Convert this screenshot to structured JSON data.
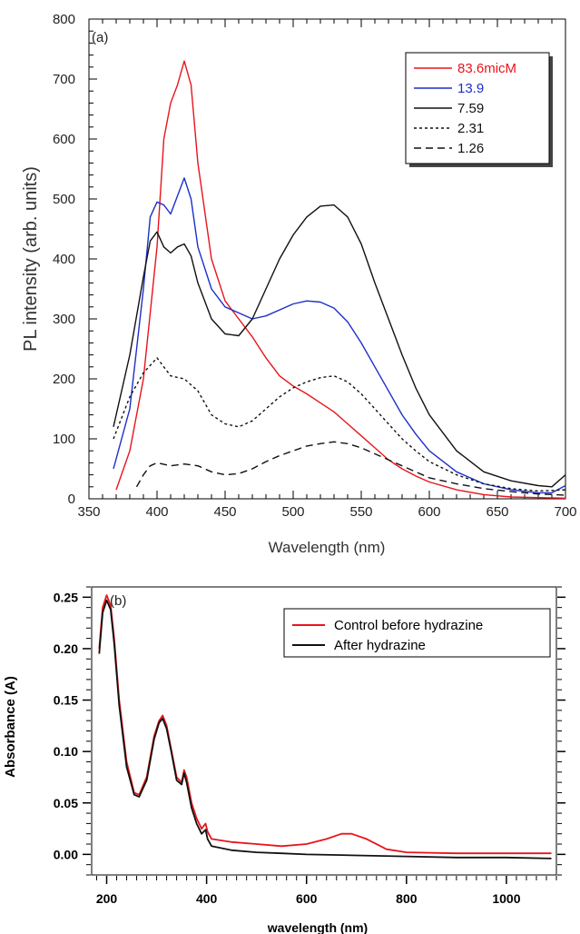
{
  "chart_data": [
    {
      "type": "line",
      "panel_label": "(a)",
      "xlabel": "Wavelength (nm)",
      "ylabel": "PL intensity (arb. units)",
      "xlim": [
        350,
        700
      ],
      "ylim": [
        0,
        800
      ],
      "x_ticks": [
        "350",
        "400",
        "450",
        "500",
        "550",
        "600",
        "650",
        "700"
      ],
      "y_ticks": [
        "0",
        "100",
        "200",
        "300",
        "400",
        "500",
        "600",
        "700",
        "800"
      ],
      "legend_position": "top-right",
      "series": [
        {
          "name": "83.6micM",
          "color": "#e8141b",
          "dash": "solid",
          "points": [
            [
              370,
              15
            ],
            [
              380,
              80
            ],
            [
              390,
              200
            ],
            [
              400,
              420
            ],
            [
              405,
              600
            ],
            [
              410,
              660
            ],
            [
              415,
              690
            ],
            [
              420,
              730
            ],
            [
              425,
              690
            ],
            [
              430,
              560
            ],
            [
              440,
              400
            ],
            [
              450,
              330
            ],
            [
              460,
              300
            ],
            [
              470,
              270
            ],
            [
              480,
              235
            ],
            [
              490,
              205
            ],
            [
              500,
              188
            ],
            [
              510,
              175
            ],
            [
              520,
              160
            ],
            [
              530,
              145
            ],
            [
              540,
              125
            ],
            [
              550,
              105
            ],
            [
              560,
              85
            ],
            [
              570,
              65
            ],
            [
              580,
              50
            ],
            [
              590,
              38
            ],
            [
              600,
              28
            ],
            [
              620,
              15
            ],
            [
              640,
              7
            ],
            [
              660,
              3
            ],
            [
              680,
              2
            ],
            [
              700,
              1
            ]
          ]
        },
        {
          "name": "13.9",
          "color": "#1c2fc8",
          "dash": "solid",
          "points": [
            [
              368,
              50
            ],
            [
              380,
              150
            ],
            [
              390,
              350
            ],
            [
              395,
              470
            ],
            [
              400,
              495
            ],
            [
              405,
              490
            ],
            [
              410,
              475
            ],
            [
              415,
              505
            ],
            [
              420,
              535
            ],
            [
              425,
              500
            ],
            [
              430,
              420
            ],
            [
              440,
              350
            ],
            [
              450,
              320
            ],
            [
              460,
              310
            ],
            [
              470,
              300
            ],
            [
              480,
              305
            ],
            [
              490,
              315
            ],
            [
              500,
              325
            ],
            [
              510,
              330
            ],
            [
              520,
              328
            ],
            [
              530,
              318
            ],
            [
              540,
              295
            ],
            [
              550,
              260
            ],
            [
              560,
              220
            ],
            [
              570,
              180
            ],
            [
              580,
              140
            ],
            [
              590,
              108
            ],
            [
              600,
              80
            ],
            [
              620,
              45
            ],
            [
              640,
              25
            ],
            [
              660,
              15
            ],
            [
              680,
              10
            ],
            [
              690,
              10
            ],
            [
              700,
              22
            ]
          ]
        },
        {
          "name": "7.59",
          "color": "#111111",
          "dash": "solid",
          "points": [
            [
              368,
              120
            ],
            [
              380,
              240
            ],
            [
              390,
              370
            ],
            [
              395,
              430
            ],
            [
              400,
              445
            ],
            [
              405,
              420
            ],
            [
              410,
              410
            ],
            [
              415,
              420
            ],
            [
              420,
              425
            ],
            [
              425,
              405
            ],
            [
              430,
              360
            ],
            [
              440,
              300
            ],
            [
              450,
              275
            ],
            [
              460,
              272
            ],
            [
              470,
              300
            ],
            [
              480,
              350
            ],
            [
              490,
              400
            ],
            [
              500,
              440
            ],
            [
              510,
              470
            ],
            [
              520,
              488
            ],
            [
              530,
              490
            ],
            [
              540,
              470
            ],
            [
              550,
              425
            ],
            [
              560,
              360
            ],
            [
              570,
              300
            ],
            [
              580,
              240
            ],
            [
              590,
              185
            ],
            [
              600,
              140
            ],
            [
              620,
              80
            ],
            [
              640,
              45
            ],
            [
              660,
              30
            ],
            [
              680,
              22
            ],
            [
              690,
              20
            ],
            [
              700,
              40
            ]
          ]
        },
        {
          "name": "2.31",
          "color": "#111111",
          "dash": "dotted",
          "points": [
            [
              368,
              100
            ],
            [
              380,
              170
            ],
            [
              390,
              210
            ],
            [
              400,
              235
            ],
            [
              410,
              205
            ],
            [
              420,
              200
            ],
            [
              430,
              180
            ],
            [
              440,
              140
            ],
            [
              450,
              125
            ],
            [
              460,
              120
            ],
            [
              470,
              130
            ],
            [
              480,
              150
            ],
            [
              490,
              170
            ],
            [
              500,
              185
            ],
            [
              510,
              195
            ],
            [
              520,
              202
            ],
            [
              530,
              205
            ],
            [
              540,
              195
            ],
            [
              550,
              175
            ],
            [
              560,
              150
            ],
            [
              570,
              125
            ],
            [
              580,
              100
            ],
            [
              590,
              80
            ],
            [
              600,
              62
            ],
            [
              620,
              40
            ],
            [
              640,
              25
            ],
            [
              660,
              17
            ],
            [
              680,
              13
            ],
            [
              700,
              15
            ]
          ]
        },
        {
          "name": "1.26",
          "color": "#111111",
          "dash": "dashed",
          "points": [
            [
              385,
              20
            ],
            [
              390,
              40
            ],
            [
              395,
              55
            ],
            [
              400,
              60
            ],
            [
              410,
              55
            ],
            [
              420,
              58
            ],
            [
              430,
              55
            ],
            [
              440,
              45
            ],
            [
              450,
              40
            ],
            [
              460,
              42
            ],
            [
              470,
              50
            ],
            [
              480,
              62
            ],
            [
              490,
              72
            ],
            [
              500,
              80
            ],
            [
              510,
              88
            ],
            [
              520,
              92
            ],
            [
              530,
              95
            ],
            [
              540,
              92
            ],
            [
              550,
              85
            ],
            [
              560,
              75
            ],
            [
              570,
              65
            ],
            [
              580,
              55
            ],
            [
              590,
              45
            ],
            [
              600,
              35
            ],
            [
              620,
              25
            ],
            [
              640,
              17
            ],
            [
              660,
              12
            ],
            [
              680,
              8
            ],
            [
              700,
              6
            ]
          ]
        }
      ]
    },
    {
      "type": "line",
      "panel_label": "(b)",
      "xlabel": "wavelength (nm)",
      "ylabel": "Absorbance (A)",
      "xlim": [
        170,
        1100
      ],
      "ylim": [
        -0.02,
        0.26
      ],
      "x_ticks": [
        "200",
        "400",
        "600",
        "800",
        "1000"
      ],
      "y_ticks": [
        "0.00",
        "0.05",
        "0.10",
        "0.15",
        "0.20",
        "0.25"
      ],
      "legend_position": "top-right",
      "series": [
        {
          "name": "Control before hydrazine",
          "color": "#e8141b",
          "points": [
            [
              185,
              0.2
            ],
            [
              192,
              0.24
            ],
            [
              200,
              0.252
            ],
            [
              208,
              0.242
            ],
            [
              215,
              0.21
            ],
            [
              225,
              0.15
            ],
            [
              240,
              0.09
            ],
            [
              255,
              0.06
            ],
            [
              265,
              0.058
            ],
            [
              280,
              0.075
            ],
            [
              295,
              0.115
            ],
            [
              305,
              0.13
            ],
            [
              312,
              0.135
            ],
            [
              320,
              0.125
            ],
            [
              330,
              0.1
            ],
            [
              340,
              0.075
            ],
            [
              350,
              0.07
            ],
            [
              355,
              0.082
            ],
            [
              360,
              0.075
            ],
            [
              370,
              0.05
            ],
            [
              380,
              0.035
            ],
            [
              390,
              0.025
            ],
            [
              398,
              0.03
            ],
            [
              402,
              0.022
            ],
            [
              410,
              0.015
            ],
            [
              450,
              0.012
            ],
            [
              500,
              0.01
            ],
            [
              550,
              0.008
            ],
            [
              600,
              0.01
            ],
            [
              640,
              0.015
            ],
            [
              670,
              0.02
            ],
            [
              690,
              0.02
            ],
            [
              720,
              0.015
            ],
            [
              760,
              0.005
            ],
            [
              800,
              0.002
            ],
            [
              900,
              0.001
            ],
            [
              1000,
              0.001
            ],
            [
              1090,
              0.001
            ]
          ]
        },
        {
          "name": "After hydrazine",
          "color": "#111111",
          "points": [
            [
              185,
              0.195
            ],
            [
              192,
              0.235
            ],
            [
              200,
              0.247
            ],
            [
              208,
              0.238
            ],
            [
              215,
              0.205
            ],
            [
              225,
              0.145
            ],
            [
              240,
              0.085
            ],
            [
              255,
              0.058
            ],
            [
              265,
              0.056
            ],
            [
              280,
              0.072
            ],
            [
              295,
              0.112
            ],
            [
              305,
              0.128
            ],
            [
              312,
              0.132
            ],
            [
              320,
              0.122
            ],
            [
              330,
              0.098
            ],
            [
              340,
              0.072
            ],
            [
              350,
              0.068
            ],
            [
              355,
              0.079
            ],
            [
              360,
              0.07
            ],
            [
              370,
              0.045
            ],
            [
              380,
              0.03
            ],
            [
              390,
              0.02
            ],
            [
              398,
              0.024
            ],
            [
              402,
              0.015
            ],
            [
              410,
              0.008
            ],
            [
              450,
              0.004
            ],
            [
              500,
              0.002
            ],
            [
              550,
              0.001
            ],
            [
              600,
              0.0
            ],
            [
              700,
              -0.001
            ],
            [
              800,
              -0.002
            ],
            [
              900,
              -0.003
            ],
            [
              1000,
              -0.003
            ],
            [
              1090,
              -0.004
            ]
          ]
        }
      ]
    }
  ]
}
